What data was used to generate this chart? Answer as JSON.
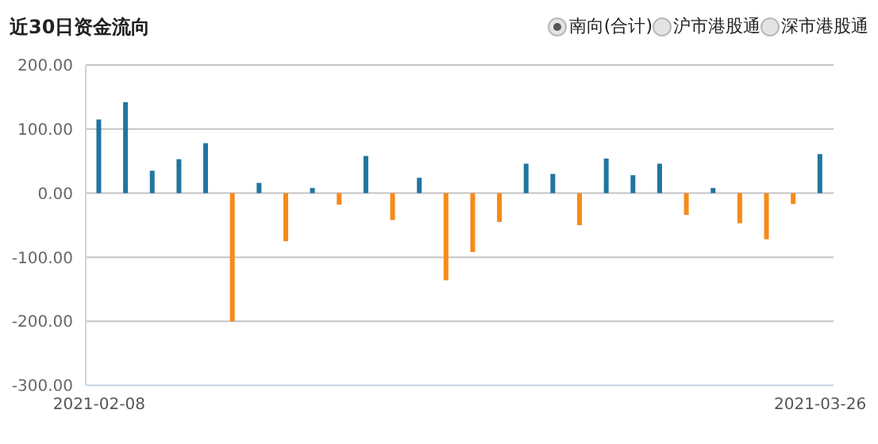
{
  "chart_data": {
    "type": "bar",
    "title": "近30日资金流向",
    "annotations": [
      "南向(合计)",
      "沪市港股通",
      "深市港股通"
    ],
    "categories": [
      "2021-02-08",
      null,
      null,
      null,
      null,
      null,
      null,
      null,
      null,
      null,
      null,
      null,
      null,
      null,
      null,
      null,
      null,
      null,
      null,
      null,
      null,
      null,
      null,
      null,
      null,
      null,
      null,
      "2021-03-26"
    ],
    "values": [
      115,
      142,
      35,
      53,
      78,
      -200,
      16,
      -75,
      8,
      -18,
      58,
      -42,
      24,
      -136,
      -92,
      -45,
      46,
      30,
      -50,
      54,
      28,
      46,
      -34,
      8,
      -47,
      -72,
      -17,
      61
    ],
    "colors": [
      "#21759f",
      "#21759f",
      "#21759f",
      "#21759f",
      "#21759f",
      "#f78a1a",
      "#21759f",
      "#f78a1a",
      "#21759f",
      "#f78a1a",
      "#21759f",
      "#f78a1a",
      "#21759f",
      "#f78a1a",
      "#f78a1a",
      "#f78a1a",
      "#21759f",
      "#21759f",
      "#f78a1a",
      "#21759f",
      "#21759f",
      "#21759f",
      "#f78a1a",
      "#21759f",
      "#f78a1a",
      "#f78a1a",
      "#f78a1a",
      "#21759f"
    ],
    "ylim": [
      -300,
      200
    ],
    "yticks": [
      {
        "value": 200,
        "label": "200.00"
      },
      {
        "value": 100,
        "label": "100.00"
      },
      {
        "value": 0,
        "label": "0.00"
      },
      {
        "value": -100,
        "label": "-100.00"
      },
      {
        "value": -200,
        "label": "-200.00"
      },
      {
        "value": -300,
        "label": "-300.00"
      }
    ],
    "grid": "y"
  }
}
